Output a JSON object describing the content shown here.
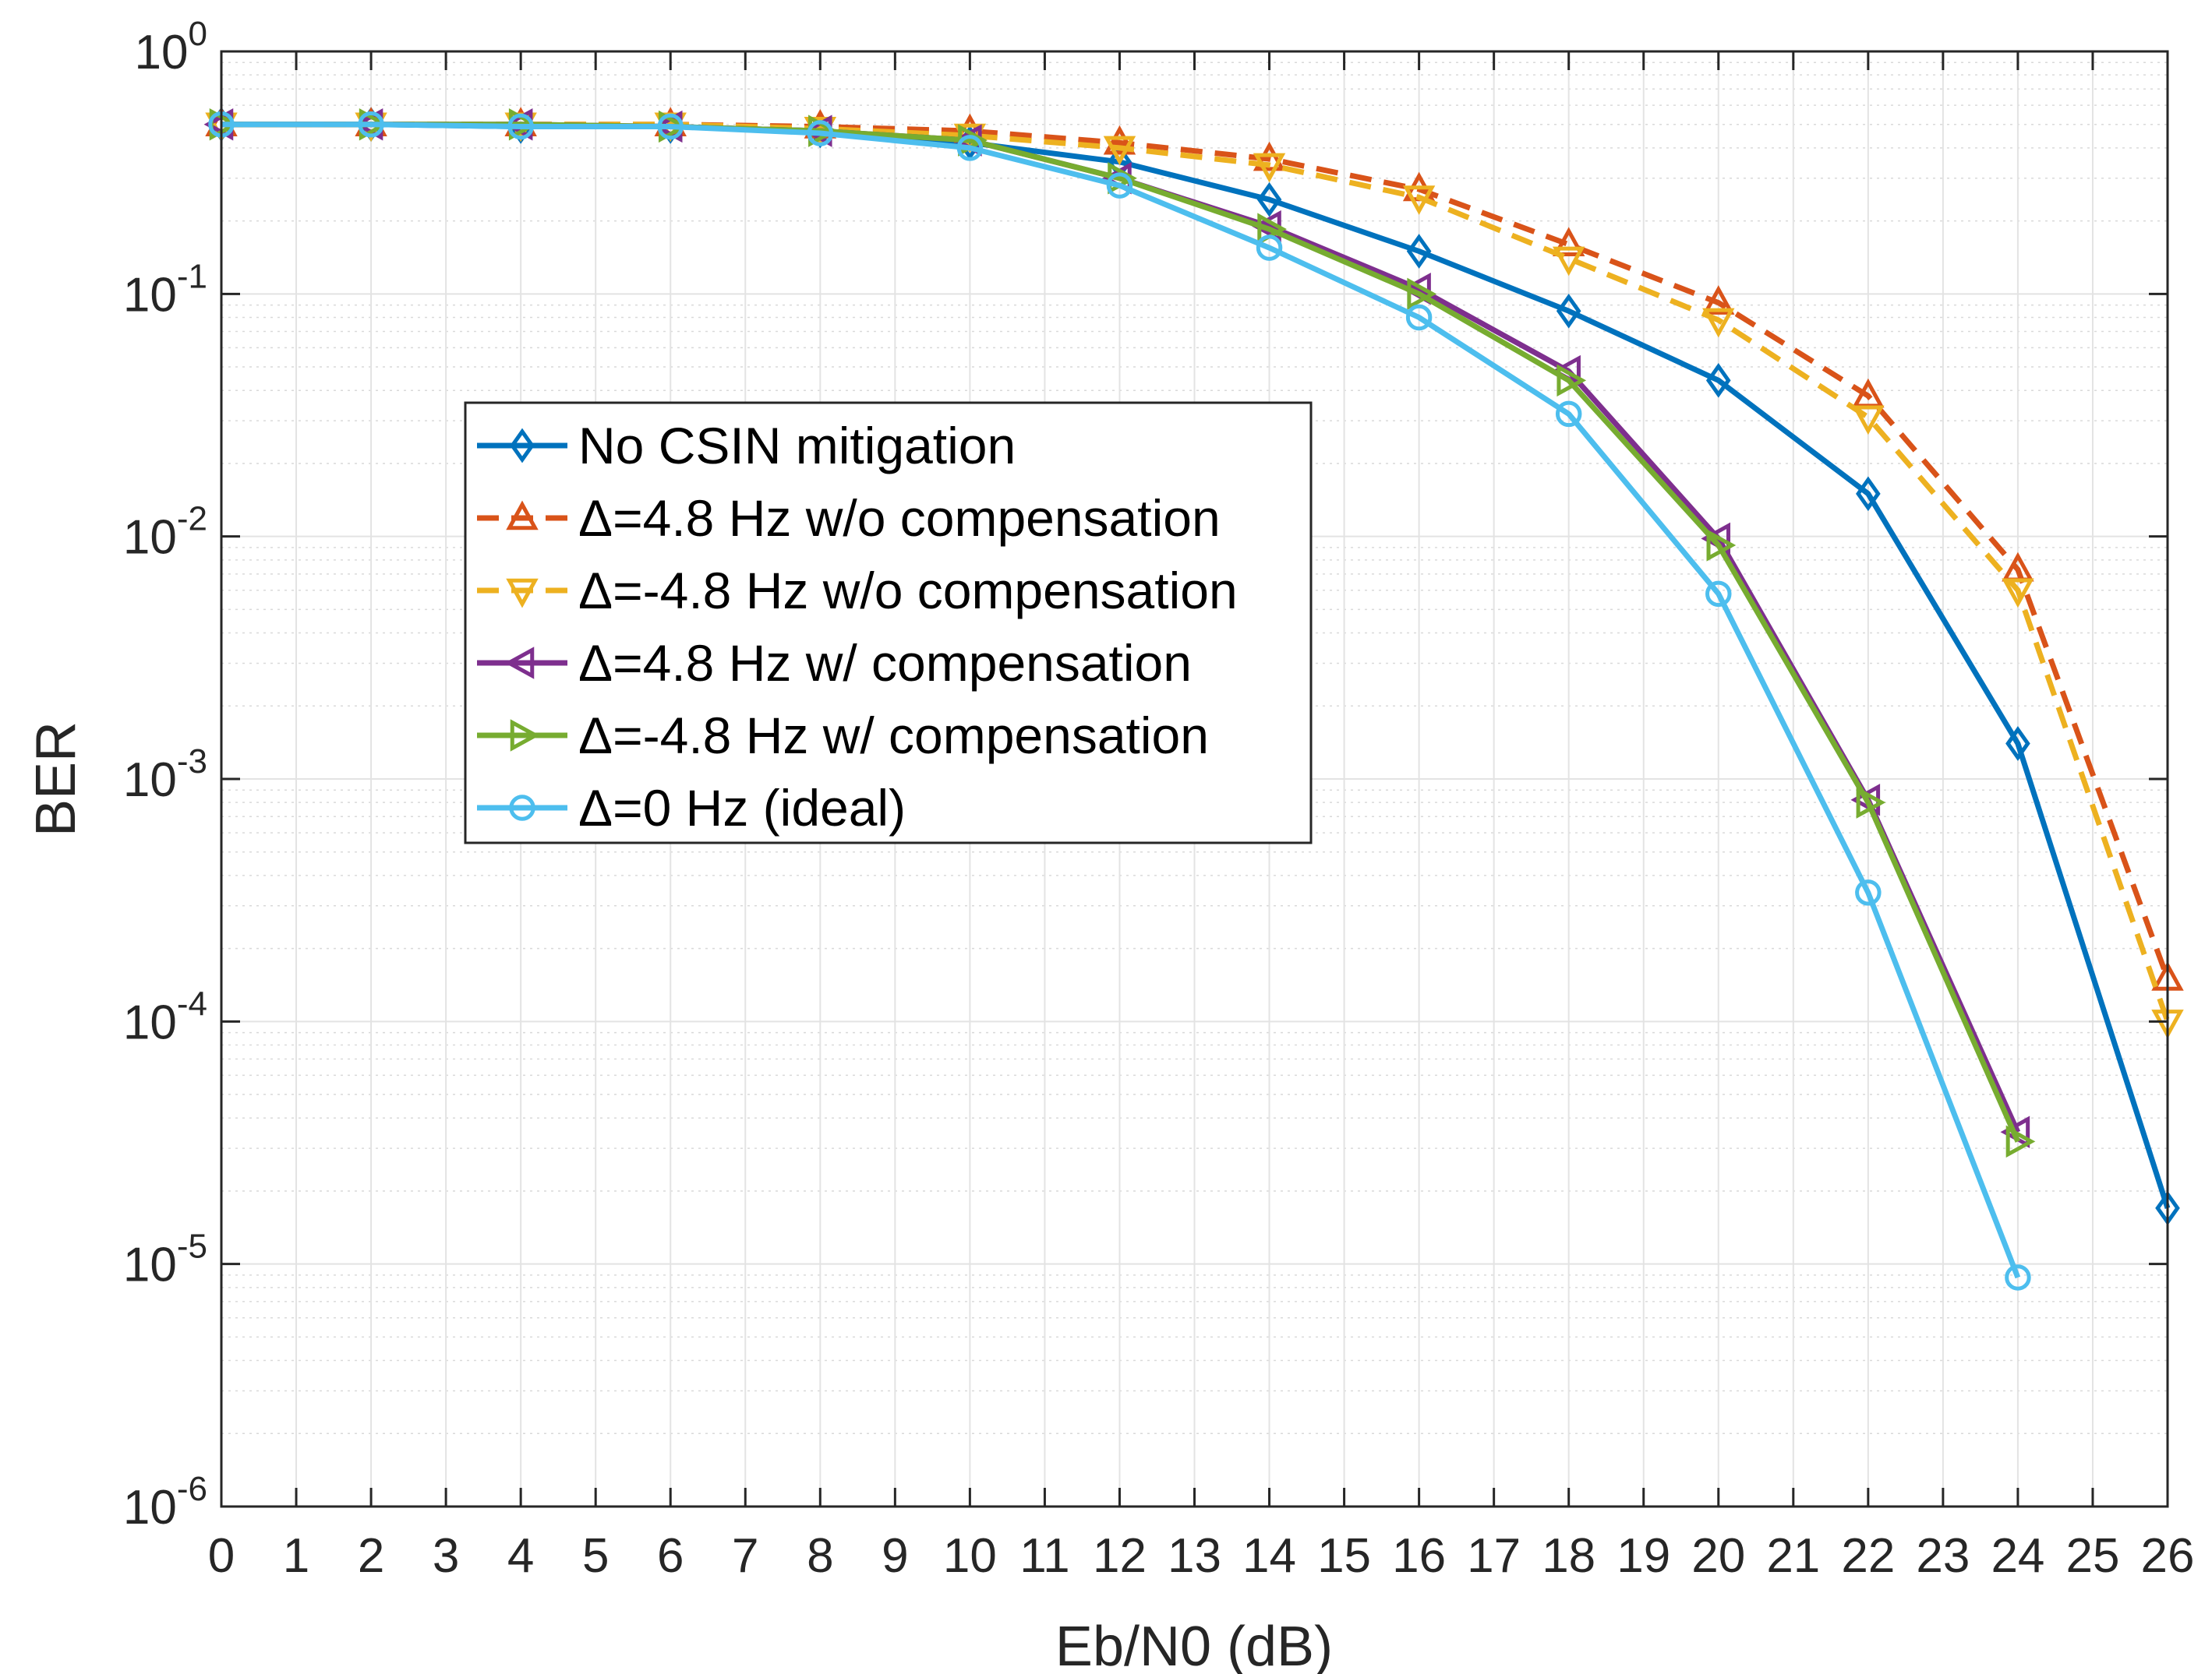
{
  "chart_data": {
    "type": "line",
    "title": "",
    "xlabel": "Eb/N0 (dB)",
    "ylabel": "BER",
    "xlim": [
      0,
      26
    ],
    "ylim": [
      1e-06,
      1
    ],
    "yscale": "log",
    "grid": true,
    "minor_grid": true,
    "legend_location": "center-left",
    "x_ticks": [
      0,
      1,
      2,
      3,
      4,
      5,
      6,
      7,
      8,
      9,
      10,
      11,
      12,
      13,
      14,
      15,
      16,
      17,
      18,
      19,
      20,
      21,
      22,
      23,
      24,
      25,
      26
    ],
    "x_tick_labels": [
      "0",
      "1",
      "2",
      "3",
      "4",
      "5",
      "6",
      "7",
      "8",
      "9",
      "10",
      "11",
      "12",
      "13",
      "14",
      "15",
      "16",
      "17",
      "18",
      "19",
      "20",
      "21",
      "22",
      "23",
      "24",
      "25",
      "26"
    ],
    "y_ticks": [
      {
        "value": 1,
        "base": "10",
        "exp": "0"
      },
      {
        "value": 0.1,
        "base": "10",
        "exp": "-1"
      },
      {
        "value": 0.01,
        "base": "10",
        "exp": "-2"
      },
      {
        "value": 0.001,
        "base": "10",
        "exp": "-3"
      },
      {
        "value": 0.0001,
        "base": "10",
        "exp": "-4"
      },
      {
        "value": 1e-05,
        "base": "10",
        "exp": "-5"
      },
      {
        "value": 1e-06,
        "base": "10",
        "exp": "-6"
      }
    ],
    "series": [
      {
        "name": "No CSIN mitigation",
        "color": "#0072BD",
        "dash": "solid",
        "marker": "diamond",
        "x": [
          0,
          2,
          4,
          6,
          8,
          10,
          12,
          14,
          16,
          18,
          20,
          22,
          24,
          26
        ],
        "y": [
          0.5,
          0.5,
          0.49,
          0.49,
          0.47,
          0.42,
          0.35,
          0.245,
          0.15,
          0.085,
          0.044,
          0.015,
          0.0014,
          1.7e-05
        ]
      },
      {
        "name": "Δ=4.8 Hz w/o compensation",
        "color": "#D95319",
        "dash": "dashed",
        "marker": "triangle-up",
        "x": [
          0,
          2,
          4,
          6,
          8,
          10,
          12,
          14,
          16,
          18,
          20,
          22,
          24,
          26
        ],
        "y": [
          0.5,
          0.5,
          0.5,
          0.5,
          0.49,
          0.47,
          0.42,
          0.36,
          0.27,
          0.16,
          0.092,
          0.038,
          0.0073,
          0.00015
        ]
      },
      {
        "name": "Δ=-4.8 Hz w/o compensation",
        "color": "#EDB120",
        "dash": "dashed",
        "marker": "triangle-down",
        "x": [
          0,
          2,
          4,
          6,
          8,
          10,
          12,
          14,
          16,
          18,
          20,
          22,
          24,
          26
        ],
        "y": [
          0.5,
          0.5,
          0.5,
          0.5,
          0.48,
          0.45,
          0.4,
          0.34,
          0.25,
          0.14,
          0.078,
          0.031,
          0.006,
          0.0001
        ]
      },
      {
        "name": "Δ=4.8 Hz w/ compensation",
        "color": "#7E2F8E",
        "dash": "solid",
        "marker": "triangle-left",
        "x": [
          0,
          2,
          4,
          6,
          8,
          10,
          12,
          14,
          16,
          18,
          20,
          22,
          24
        ],
        "y": [
          0.5,
          0.5,
          0.5,
          0.49,
          0.47,
          0.43,
          0.3,
          0.19,
          0.105,
          0.048,
          0.0098,
          0.00082,
          3.5e-05
        ]
      },
      {
        "name": "Δ=-4.8 Hz w/ compensation",
        "color": "#77AC30",
        "dash": "solid",
        "marker": "triangle-right",
        "x": [
          0,
          2,
          4,
          6,
          8,
          10,
          12,
          14,
          16,
          18,
          20,
          22,
          24
        ],
        "y": [
          0.5,
          0.5,
          0.5,
          0.49,
          0.47,
          0.43,
          0.3,
          0.185,
          0.1,
          0.044,
          0.0092,
          0.0008,
          3.2e-05
        ]
      },
      {
        "name": "Δ=0 Hz (ideal)",
        "color": "#4DBEEE",
        "dash": "solid",
        "marker": "circle",
        "x": [
          0,
          2,
          4,
          6,
          8,
          10,
          12,
          14,
          16,
          18,
          20,
          22,
          24
        ],
        "y": [
          0.5,
          0.5,
          0.49,
          0.49,
          0.46,
          0.4,
          0.28,
          0.155,
          0.08,
          0.032,
          0.0058,
          0.00034,
          8.8e-06
        ]
      }
    ]
  }
}
